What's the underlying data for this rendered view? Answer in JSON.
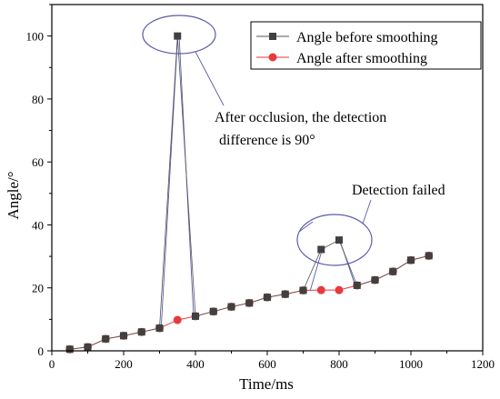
{
  "chart_data": {
    "type": "line",
    "xlabel": "Time/ms",
    "ylabel": "Angle/°",
    "xlim": [
      0,
      1200
    ],
    "ylim": [
      0,
      110
    ],
    "xticks": [
      0,
      200,
      400,
      600,
      800,
      1000,
      1200
    ],
    "yticks": [
      0,
      20,
      40,
      60,
      80,
      100
    ],
    "grid": false,
    "legend_position": "top-right",
    "series": [
      {
        "name": "Angle before smoothing",
        "marker": "square",
        "color": "#404040",
        "x": [
          50,
          100,
          150,
          200,
          250,
          300,
          350,
          400,
          450,
          500,
          550,
          600,
          650,
          700,
          750,
          800,
          850,
          900,
          950,
          1000,
          1050
        ],
        "y": [
          0.5,
          1.2,
          3.8,
          4.8,
          6,
          7.2,
          100,
          11,
          12.5,
          14,
          15.2,
          17,
          18,
          19.2,
          32.2,
          35.2,
          20.8,
          22.5,
          25.2,
          28.8,
          30.2
        ]
      },
      {
        "name": "Angle after smoothing",
        "marker": "circle",
        "color": "#e8393b",
        "x": [
          50,
          100,
          150,
          200,
          250,
          300,
          350,
          400,
          450,
          500,
          550,
          600,
          650,
          700,
          750,
          800,
          850,
          900,
          950,
          1000,
          1050
        ],
        "y": [
          0.5,
          1.2,
          3.8,
          4.8,
          6,
          7.2,
          9.8,
          11,
          12.5,
          14,
          15.2,
          17,
          18,
          19.2,
          19.3,
          19.3,
          20.8,
          22.5,
          25.2,
          28.8,
          30.2
        ]
      }
    ],
    "annotations": [
      {
        "id": "occlusion",
        "lines": [
          "After occlusion, the detection",
          "difference is 90°"
        ]
      },
      {
        "id": "failed",
        "lines": [
          "Detection failed"
        ]
      }
    ]
  }
}
